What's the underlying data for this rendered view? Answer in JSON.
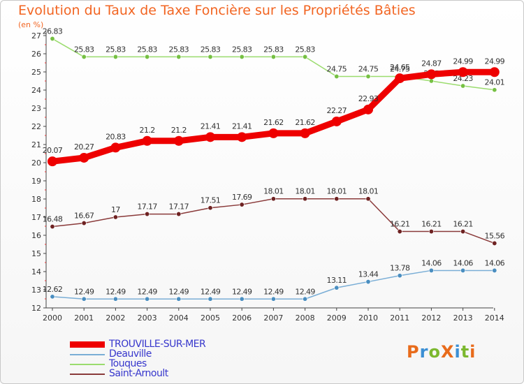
{
  "title": "Evolution du Taux de Taxe Foncière sur les Propriétés Bâties",
  "subtitle": "(en %)",
  "logo": {
    "text": "ProXiti",
    "colors": [
      "#e86b1b",
      "#3b8fd4",
      "#7cb82f",
      "#e86b1b",
      "#3b8fd4",
      "#7cb82f",
      "#e86b1b"
    ]
  },
  "chart_data": {
    "type": "line",
    "x": [
      2000,
      2001,
      2002,
      2003,
      2004,
      2005,
      2006,
      2007,
      2008,
      2009,
      2010,
      2011,
      2012,
      2013,
      2014
    ],
    "ylim": [
      12,
      27
    ],
    "yticks": [
      12,
      13,
      14,
      15,
      16,
      17,
      18,
      19,
      20,
      21,
      22,
      23,
      24,
      25,
      26,
      27
    ],
    "grid": false,
    "legend": "bottom-left",
    "series": [
      {
        "name": "TROUVILLE-SUR-MER",
        "color": "#ee0000",
        "marker": "#ee0000",
        "values": [
          20.07,
          20.27,
          20.83,
          21.2,
          21.2,
          21.41,
          21.41,
          21.62,
          21.62,
          22.27,
          22.93,
          24.65,
          24.87,
          24.99,
          24.99
        ],
        "labels": [
          "20.07",
          "20.27",
          "20.83",
          "21.2",
          "21.2",
          "21.41",
          "21.41",
          "21.62",
          "21.62",
          "22.27",
          "22.93",
          "24.65",
          "24.87",
          "24.99",
          "24.99"
        ]
      },
      {
        "name": "Deauville",
        "color": "#7aaed6",
        "marker": "#4a8ec0",
        "values": [
          12.62,
          12.49,
          12.49,
          12.49,
          12.49,
          12.49,
          12.49,
          12.49,
          12.49,
          13.11,
          13.44,
          13.78,
          14.06,
          14.06,
          14.06
        ],
        "labels": [
          "12.62",
          "12.49",
          "12.49",
          "12.49",
          "12.49",
          "12.49",
          "12.49",
          "12.49",
          "12.49",
          "13.11",
          "13.44",
          "13.78",
          "14.06",
          "14.06",
          "14.06"
        ]
      },
      {
        "name": "Touques",
        "color": "#9bdc6e",
        "marker": "#76c043",
        "values": [
          26.83,
          25.83,
          25.83,
          25.83,
          25.83,
          25.83,
          25.83,
          25.83,
          25.83,
          24.75,
          24.75,
          24.75,
          24.5,
          24.23,
          24.01
        ],
        "labels": [
          "26.83",
          "25.83",
          "25.83",
          "25.83",
          "25.83",
          "25.83",
          "25.83",
          "25.83",
          "25.83",
          "24.75",
          "24.75",
          "24.75",
          "24.5",
          "24.23",
          "24.01"
        ]
      },
      {
        "name": "Saint-Arnoult",
        "color": "#8a3a3a",
        "marker": "#6e2222",
        "values": [
          16.48,
          16.67,
          17,
          17.17,
          17.17,
          17.51,
          17.69,
          18.01,
          18.01,
          18.01,
          18.01,
          16.21,
          16.21,
          16.21,
          15.56
        ],
        "labels": [
          "16.48",
          "16.67",
          "17",
          "17.17",
          "17.17",
          "17.51",
          "17.69",
          "18.01",
          "18.01",
          "18.01",
          "18.01",
          "16.21",
          "16.21",
          "16.21",
          "15.56"
        ]
      }
    ]
  }
}
